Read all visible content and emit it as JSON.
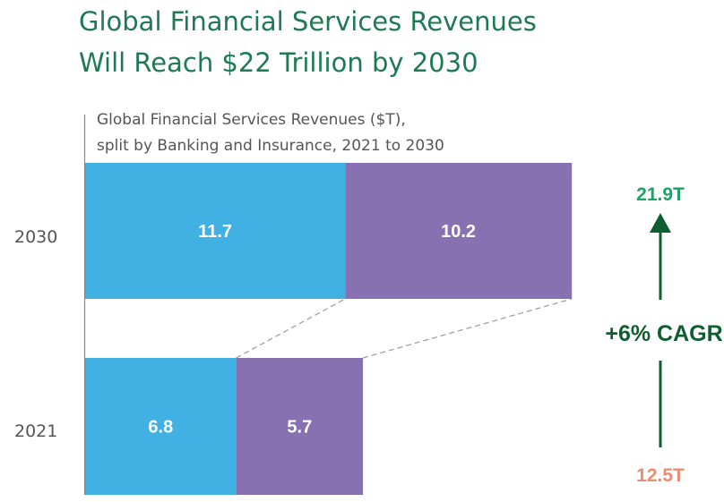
{
  "chart_data": {
    "type": "bar",
    "orientation": "horizontal",
    "stacked": true,
    "title": "Global Financial Services Revenues Will Reach $22 Trillion by 2030",
    "title_lines": [
      "Global Financial Services Revenues",
      "Will Reach $22 Trillion by 2030"
    ],
    "subtitle_lines": [
      "Global Financial Services Revenues ($T),",
      "split by Banking and Insurance, 2021 to 2030"
    ],
    "categories": [
      "2030",
      "2021"
    ],
    "series": [
      {
        "name": "Banking",
        "color": "#41b0e2",
        "values": [
          11.7,
          6.8
        ]
      },
      {
        "name": "Insurance",
        "color": "#8871b1",
        "values": [
          10.2,
          5.7
        ]
      }
    ],
    "value_labels": [
      [
        "11.7",
        "10.2"
      ],
      [
        "6.8",
        "5.7"
      ]
    ],
    "xlim": [
      0,
      22.5
    ],
    "grid": false,
    "annotations": {
      "top_total": "21.9T",
      "bottom_total": "12.5T",
      "growth": "+6% CAGR",
      "top_color": "#1aa364",
      "bottom_color": "#ef8a73",
      "arrow_color": "#0f5e2f"
    }
  },
  "colors": {
    "title": "#1e7a52",
    "axis": "#888888",
    "connector": "#a0a0a0"
  }
}
